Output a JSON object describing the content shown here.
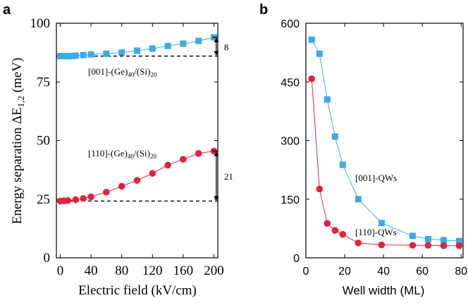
{
  "colors": {
    "blue": "#3aaae8",
    "red": "#e0243c",
    "blue_line": "#3aaae8",
    "red_line": "#e0243c"
  },
  "chart_data": [
    {
      "panel": "a",
      "type": "line",
      "xlabel": "Electric field (kV/cm)",
      "ylabel_main": "Energy separation ΔE",
      "ylabel_sub": "1,2",
      "ylabel_unit": " (meV)",
      "xlim": [
        -5,
        205
      ],
      "ylim": [
        0,
        100
      ],
      "x_ticks": [
        0,
        40,
        80,
        120,
        160,
        200
      ],
      "y_ticks": [
        0,
        25,
        50,
        75,
        100
      ],
      "x_tick_labels": [
        "0",
        "40",
        "80",
        "120",
        "160",
        "200"
      ],
      "y_tick_labels": [
        "0",
        "25",
        "50",
        "75",
        "100"
      ],
      "series": [
        {
          "name": "[001]-(Ge)40/(Si)20",
          "label_main": "[001]-(Ge)",
          "label_sub1": "40",
          "label_mid": "/(Si)",
          "label_sub2": "20",
          "marker": "square",
          "color": "#3aaae8",
          "x": [
            0,
            5,
            10,
            15,
            20,
            30,
            40,
            60,
            80,
            100,
            120,
            140,
            160,
            180,
            200
          ],
          "y": [
            86,
            86,
            86,
            86,
            86.2,
            86.4,
            86.7,
            87,
            87.5,
            88.3,
            89.2,
            90.3,
            91.3,
            92.5,
            94
          ]
        },
        {
          "name": "[110]-(Ge)40/(Si)20",
          "label_main": "[110]-(Ge)",
          "label_sub1": "40",
          "label_mid": "/(Si)",
          "label_sub2": "20",
          "marker": "circle",
          "color": "#e0243c",
          "x": [
            0,
            5,
            10,
            20,
            30,
            40,
            60,
            80,
            100,
            120,
            140,
            160,
            180,
            200
          ],
          "y": [
            24.2,
            24.3,
            24.4,
            24.8,
            25.3,
            26,
            28,
            30.5,
            33,
            36,
            39.5,
            42,
            44.5,
            45.5
          ]
        }
      ],
      "annotations": [
        {
          "label": "8",
          "y_low": 86,
          "y_high": 94
        },
        {
          "label": "21",
          "y_low": 24.2,
          "y_high": 45.5
        }
      ]
    },
    {
      "panel": "b",
      "type": "line",
      "xlabel": "Well width (ML)",
      "ylabel": "",
      "xlim": [
        0,
        81
      ],
      "ylim": [
        0,
        600
      ],
      "x_ticks": [
        0,
        20,
        40,
        60,
        80
      ],
      "y_ticks": [
        0,
        150,
        300,
        450,
        600
      ],
      "x_tick_labels": [
        "0",
        "20",
        "40",
        "60",
        "80"
      ],
      "y_tick_labels": [
        "0",
        "150",
        "300",
        "450",
        "600"
      ],
      "series": [
        {
          "name": "[001]-QWs",
          "marker": "square",
          "color": "#3aaae8",
          "x": [
            3,
            7,
            11,
            15,
            19,
            27,
            39,
            55,
            63,
            71,
            79
          ],
          "y": [
            558,
            522,
            405,
            310,
            238,
            150,
            89,
            56,
            48,
            45,
            43
          ]
        },
        {
          "name": "[110]-QWs",
          "marker": "circle",
          "color": "#e0243c",
          "x": [
            3,
            7,
            11,
            15,
            19,
            27,
            39,
            55,
            63,
            71,
            79
          ],
          "y": [
            458,
            176,
            88,
            70,
            60,
            38,
            33,
            32,
            32,
            31,
            31
          ]
        }
      ]
    }
  ]
}
